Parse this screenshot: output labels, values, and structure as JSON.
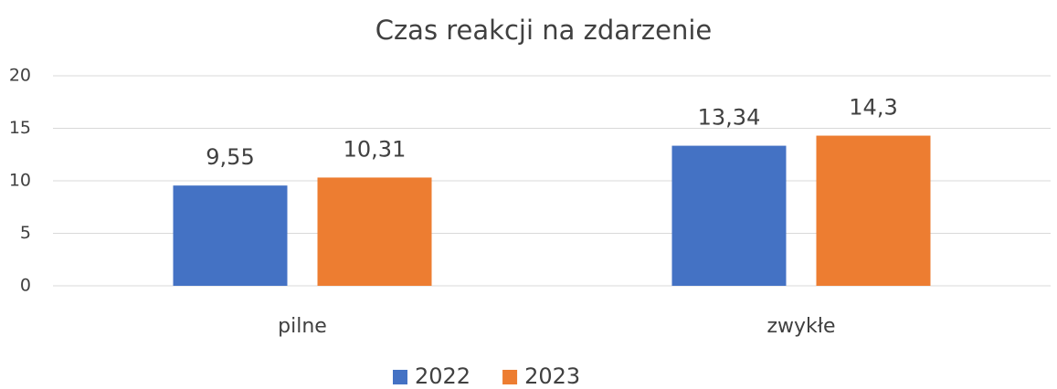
{
  "chart_data": {
    "type": "bar",
    "title": "Czas reakcji na zdarzenie",
    "categories": [
      "pilne",
      "zwykłe"
    ],
    "series": [
      {
        "name": "2022",
        "color": "#4472c4",
        "values": [
          9.55,
          13.34
        ],
        "value_labels": [
          "9,55",
          "13,34"
        ]
      },
      {
        "name": "2023",
        "color": "#ed7d31",
        "values": [
          10.31,
          14.3
        ],
        "value_labels": [
          "10,31",
          "14,3"
        ]
      }
    ],
    "ylim": [
      0,
      20
    ],
    "yticks": [
      0,
      5,
      10,
      15,
      20
    ],
    "grid": true,
    "legend": "bottom"
  }
}
